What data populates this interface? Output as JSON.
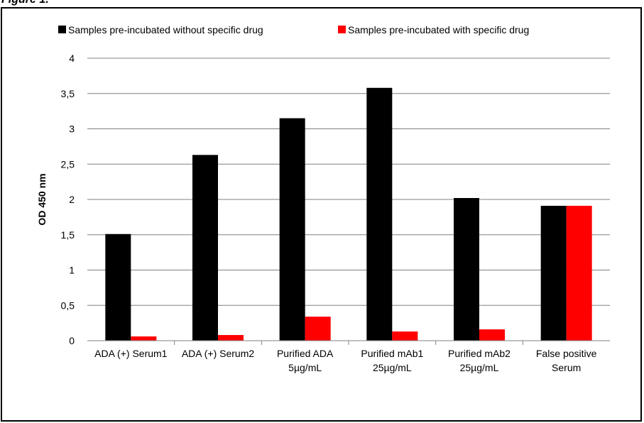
{
  "figure": {
    "heading": "Figure 1."
  },
  "chart_data": {
    "type": "bar",
    "title": "",
    "xlabel": "",
    "ylabel": "OD 450 nm",
    "ylim": [
      0,
      4
    ],
    "yticks": [
      "0",
      "0,5",
      "1",
      "1,5",
      "2",
      "2,5",
      "3",
      "3,5",
      "4"
    ],
    "grid": true,
    "legend_position": "top",
    "categories": [
      [
        "ADA (+) Serum1"
      ],
      [
        "ADA (+) Serum2"
      ],
      [
        "Purified ADA",
        "5µg/mL"
      ],
      [
        "Purified mAb1",
        "25µg/mL"
      ],
      [
        "Purified mAb2",
        "25µg/mL"
      ],
      [
        "False positive",
        "Serum"
      ]
    ],
    "series": [
      {
        "name": "Samples pre-incubated without specific drug",
        "color": "#000000",
        "values": [
          1.51,
          2.63,
          3.15,
          3.58,
          2.02,
          1.91
        ]
      },
      {
        "name": "Samples pre-incubated with specific drug",
        "color": "#ff0000",
        "values": [
          0.06,
          0.08,
          0.34,
          0.13,
          0.16,
          1.91
        ]
      }
    ]
  }
}
